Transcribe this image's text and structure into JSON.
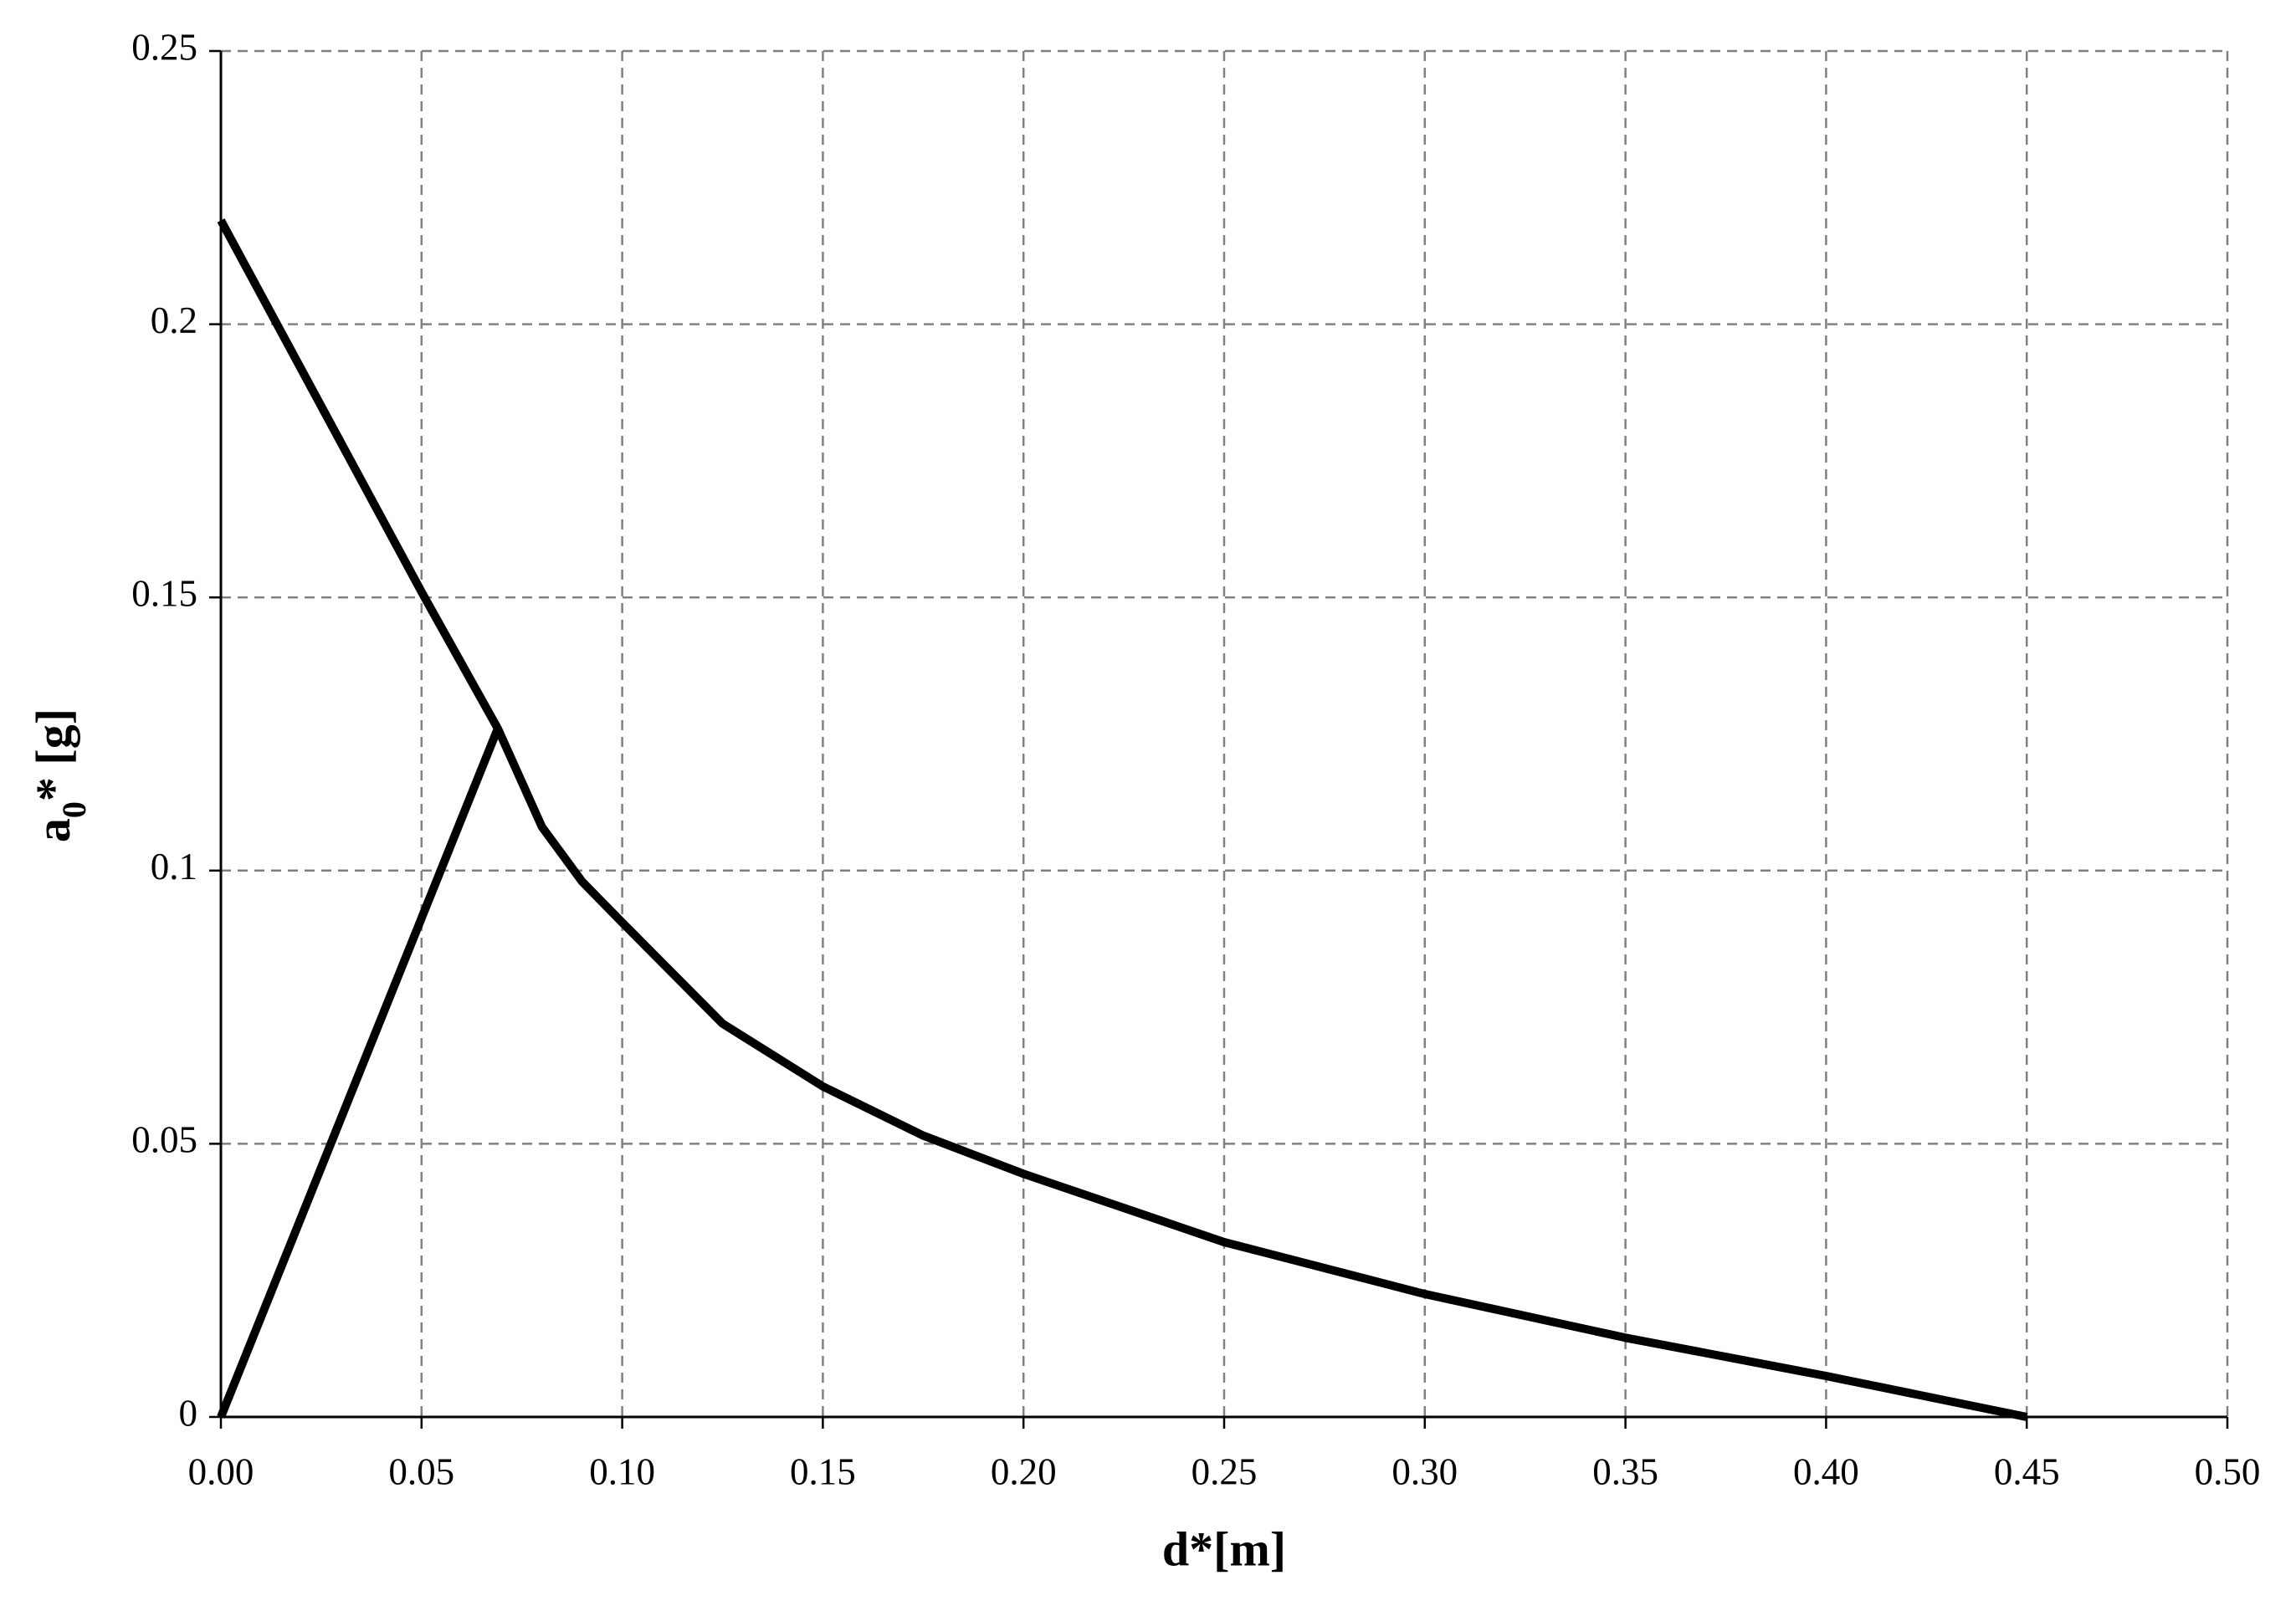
{
  "chart_data": {
    "type": "line",
    "x_label": "d*[m]",
    "y_label": "a",
    "y_label_subscript": "0",
    "y_label_suffix": "* [g]",
    "series": [
      {
        "color": "#000000",
        "x": [
          0,
          0.069
        ],
        "values": [
          0,
          0.126
        ]
      },
      {
        "color": "#000000",
        "x": [
          0,
          0.05,
          0.069,
          0.08,
          0.09,
          0.1,
          0.125,
          0.15,
          0.175,
          0.2,
          0.25,
          0.3,
          0.35,
          0.4,
          0.45
        ],
        "values": [
          0.219,
          0.151,
          0.126,
          0.108,
          0.098,
          0.0905,
          0.072,
          0.0605,
          0.0515,
          0.0445,
          0.032,
          0.0225,
          0.0145,
          0.0075,
          0
        ]
      }
    ],
    "xlim": [
      0,
      0.5
    ],
    "xticks": [
      {
        "value": 0,
        "label": "0.00"
      },
      0.05,
      {
        "value": 0.1,
        "label": "0.10"
      },
      0.15,
      {
        "value": 0.2,
        "label": "0.20"
      },
      0.25,
      {
        "value": 0.3,
        "label": "0.30"
      },
      0.35,
      {
        "value": 0.4,
        "label": "0.40"
      },
      0.45,
      {
        "value": 0.5,
        "label": "0.50"
      }
    ],
    "ylim": [
      0,
      0.25
    ],
    "yticks": [
      0,
      0.05,
      0.1,
      0.15,
      0.2,
      0.25
    ],
    "grid": true
  }
}
